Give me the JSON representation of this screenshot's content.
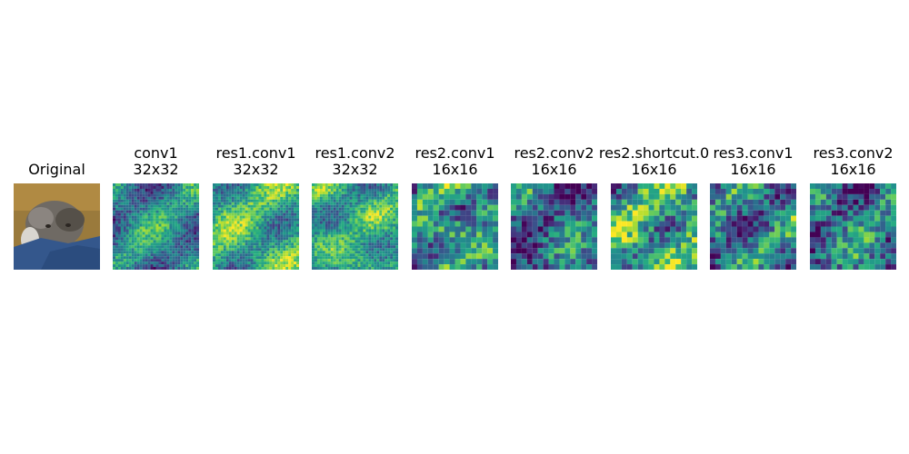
{
  "panels": [
    {
      "name": "Original",
      "size": "",
      "kind": "photo"
    },
    {
      "name": "conv1",
      "size": "32x32",
      "kind": "map",
      "grid": 32,
      "seed": 11,
      "base": 0.45
    },
    {
      "name": "res1.conv1",
      "size": "32x32",
      "kind": "map",
      "grid": 32,
      "seed": 23,
      "base": 0.62
    },
    {
      "name": "res1.conv2",
      "size": "32x32",
      "kind": "map",
      "grid": 32,
      "seed": 37,
      "base": 0.58
    },
    {
      "name": "res2.conv1",
      "size": "16x16",
      "kind": "map",
      "grid": 16,
      "seed": 41,
      "base": 0.5
    },
    {
      "name": "res2.conv2",
      "size": "16x16",
      "kind": "map",
      "grid": 16,
      "seed": 53,
      "base": 0.35
    },
    {
      "name": "res2.shortcut.0",
      "size": "16x16",
      "kind": "map",
      "grid": 16,
      "seed": 67,
      "base": 0.6
    },
    {
      "name": "res3.conv1",
      "size": "16x16",
      "kind": "map",
      "grid": 16,
      "seed": 79,
      "base": 0.42
    },
    {
      "name": "res3.conv2",
      "size": "16x16",
      "kind": "map",
      "grid": 16,
      "seed": 97,
      "base": 0.4
    }
  ],
  "colormap": "viridis"
}
